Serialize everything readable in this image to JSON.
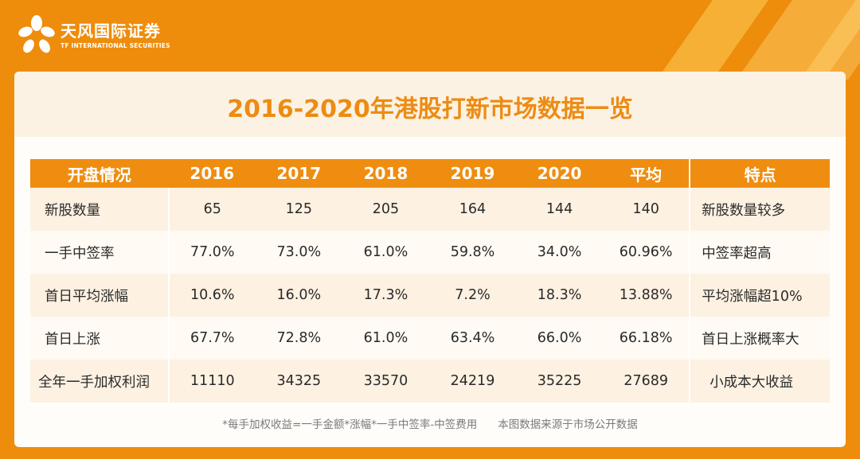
{
  "brand": {
    "name_cn": "天风国际证券",
    "name_en": "TF INTERNATIONAL SECURITIES",
    "logo_icon": "flower-logo-icon",
    "colors": {
      "primary": "#ee8c0c",
      "header": "#ef8d10",
      "title": "#ec8c14"
    }
  },
  "title": "2016-2020年港股打新市场数据一览",
  "table": {
    "columns": [
      "开盘情况",
      "2016",
      "2017",
      "2018",
      "2019",
      "2020",
      "平均",
      "特点"
    ],
    "rows": [
      {
        "label": "新股数量",
        "values": [
          "65",
          "125",
          "205",
          "164",
          "144",
          "140"
        ],
        "feature": "新股数量较多"
      },
      {
        "label": "一手中签率",
        "values": [
          "77.0%",
          "73.0%",
          "61.0%",
          "59.8%",
          "34.0%",
          "60.96%"
        ],
        "feature": "中签率超高"
      },
      {
        "label": "首日平均涨幅",
        "values": [
          "10.6%",
          "16.0%",
          "17.3%",
          "7.2%",
          "18.3%",
          "13.88%"
        ],
        "feature": "平均涨幅超10%"
      },
      {
        "label": "首日上涨",
        "values": [
          "67.7%",
          "72.8%",
          "61.0%",
          "63.4%",
          "66.0%",
          "66.18%"
        ],
        "feature": "首日上涨概率大"
      },
      {
        "label": "全年一手加权利润",
        "values": [
          "11110",
          "34325",
          "33570",
          "24219",
          "35225",
          "27689"
        ],
        "feature": "小成本大收益"
      }
    ]
  },
  "footnotes": {
    "formula": "*每手加权收益=一手金额*涨幅*一手中签率-中签费用",
    "source": "本图数据来源于市场公开数据"
  }
}
